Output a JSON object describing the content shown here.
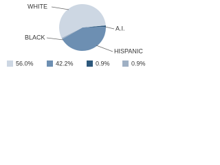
{
  "chart_data": {
    "type": "pie",
    "categories": [
      "WHITE",
      "HISPANIC",
      "A.I.",
      "BLACK"
    ],
    "values": [
      56.0,
      42.2,
      0.9,
      0.9
    ],
    "value_labels": [
      "56.0%",
      "42.2%",
      "0.9%",
      "0.9%"
    ],
    "colors": [
      "#cdd7e3",
      "#6d8fb2",
      "#2d587c",
      "#9fb0c4"
    ],
    "legend": "bottom"
  }
}
